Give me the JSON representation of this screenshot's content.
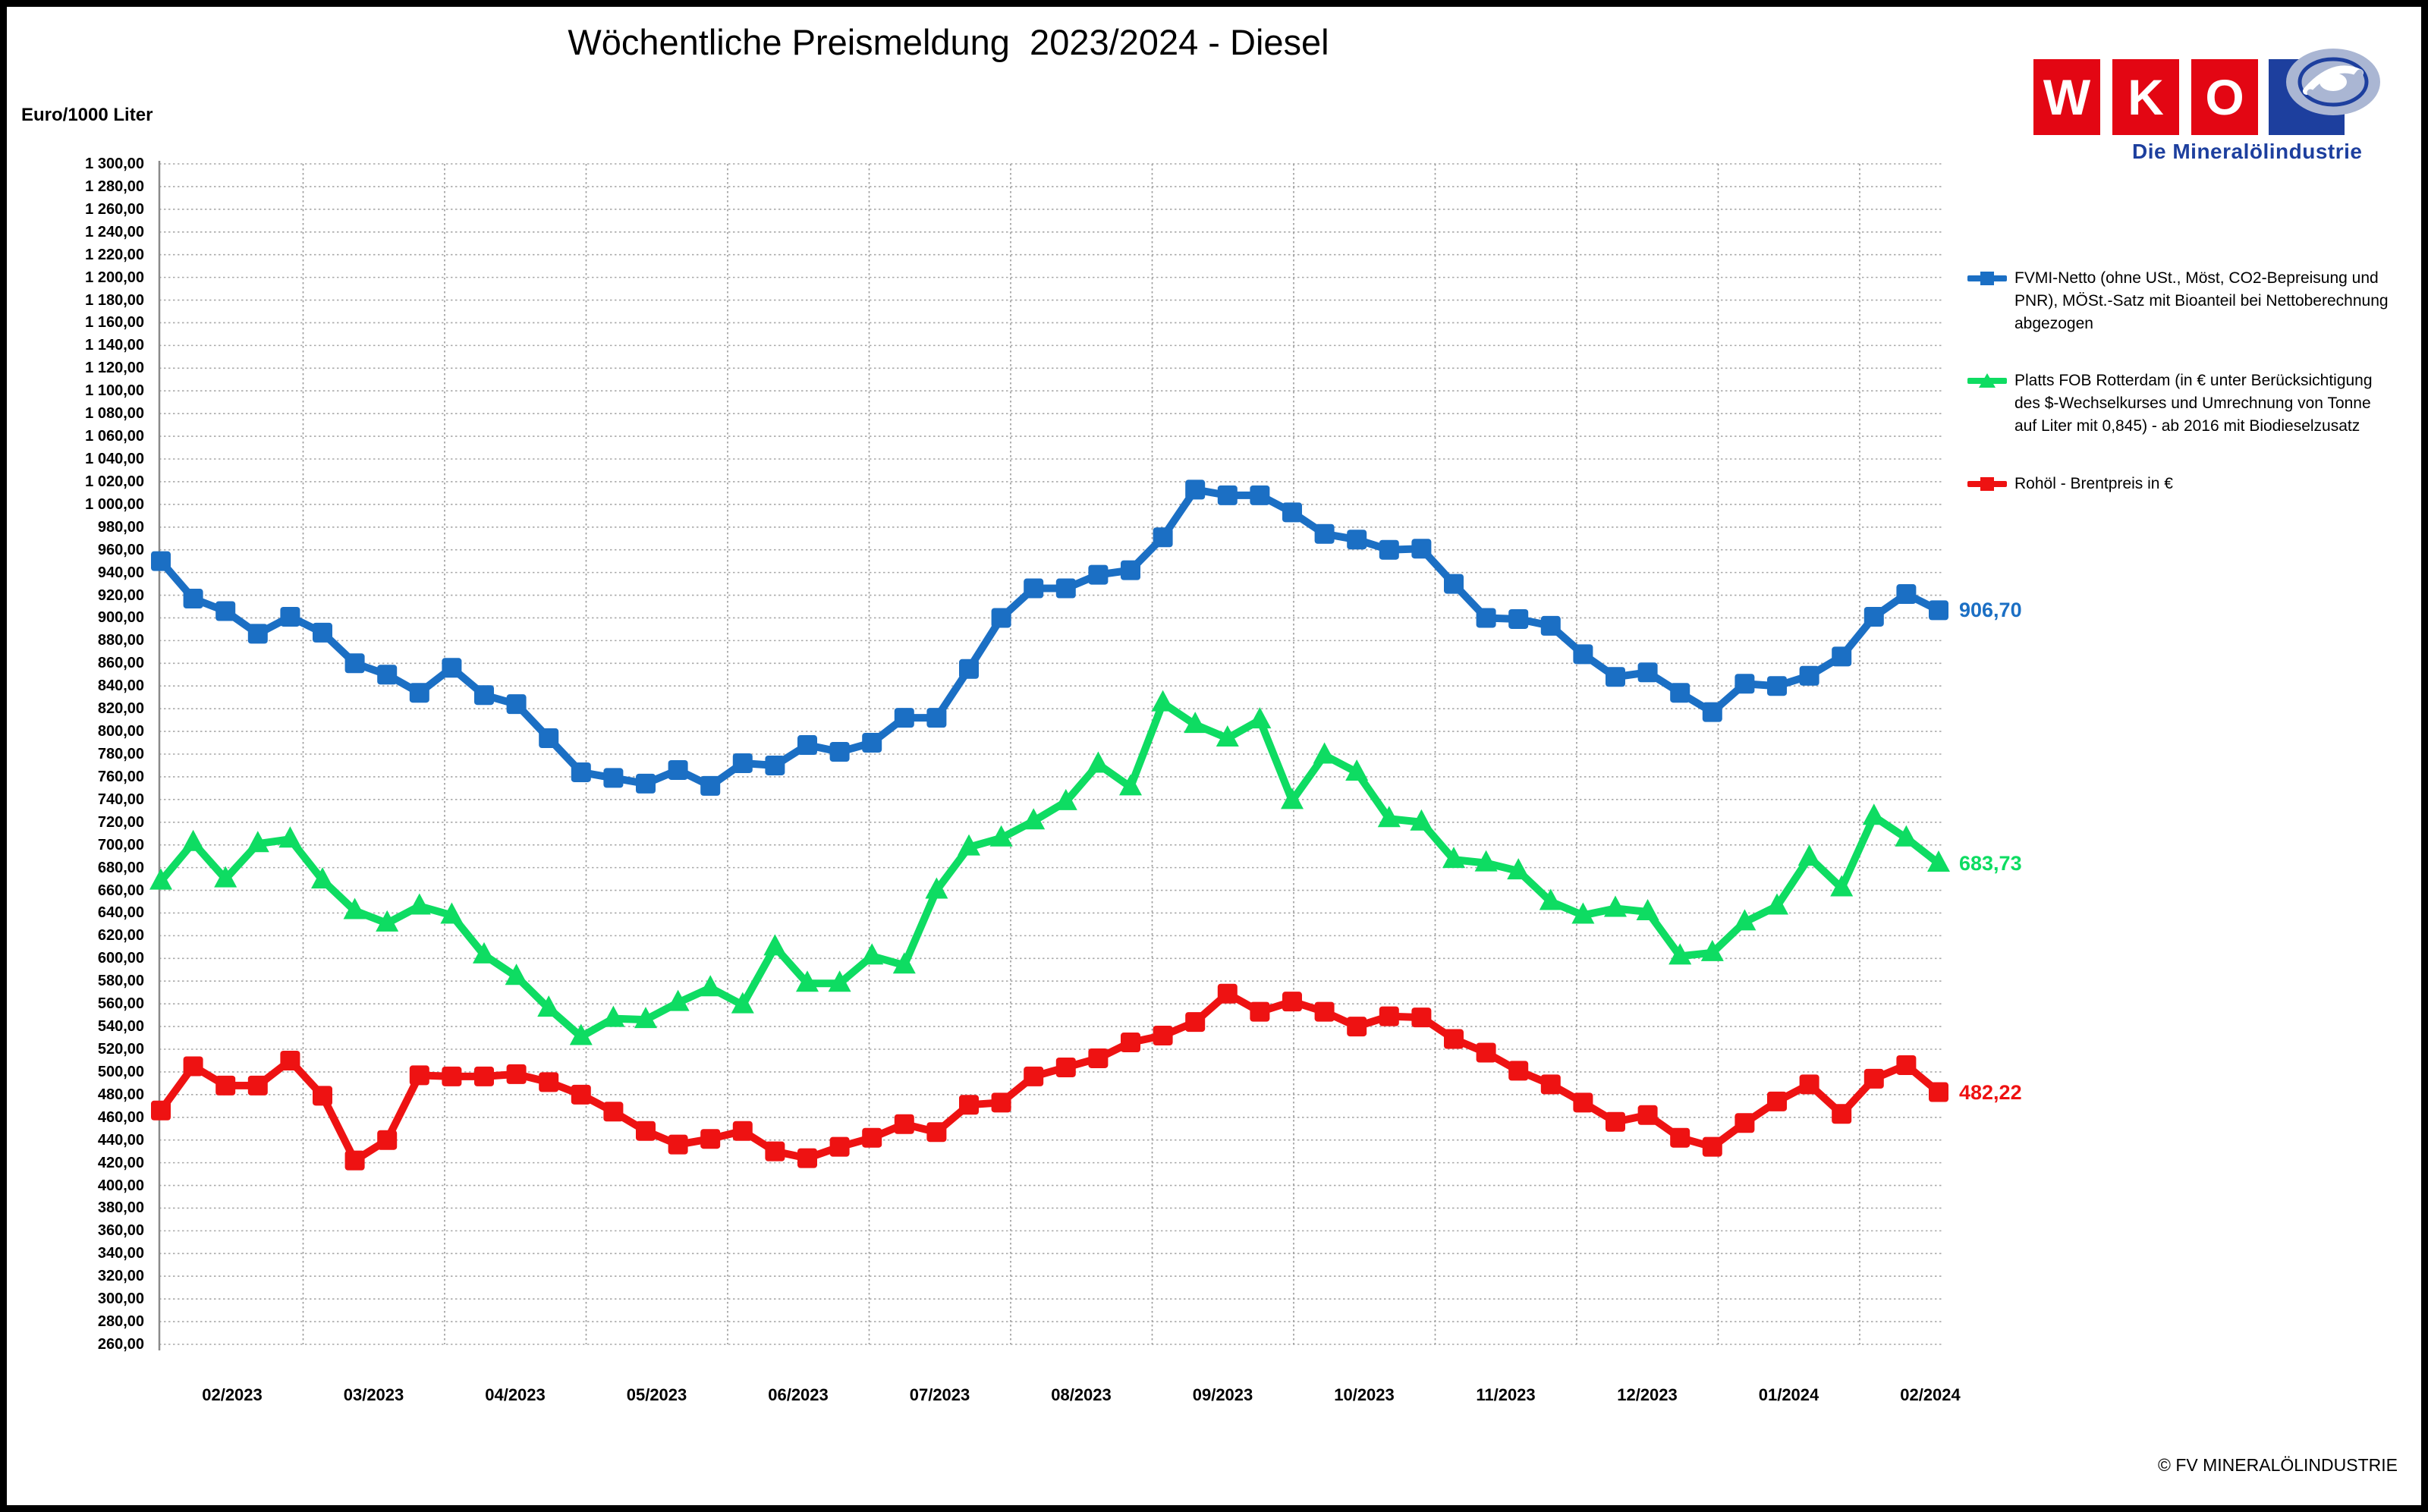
{
  "title": "Wöchentliche Preismeldung  2023/2024 - Diesel",
  "axis_unit": "Euro/1000 Liter",
  "footer": "© FV MINERALÖLINDUSTRIE",
  "logo": {
    "letters": [
      "W",
      "K",
      "O"
    ],
    "subtitle": "Die Mineralölindustrie",
    "brand_red": "#e30613",
    "brand_blue": "#1d3f9e"
  },
  "legend": {
    "items": [
      {
        "label": "FVMI-Netto (ohne USt., Möst, CO2-Bepreisung und PNR), MÖSt.-Satz mit Bioanteil bei Nettoberechnung abgezogen",
        "color": "#1b6fc4",
        "marker": "square"
      },
      {
        "label": "Platts FOB Rotterdam (in € unter Berücksichtigung des $-Wechselkurses und Umrechnung von Tonne auf Liter mit 0,845) - ab 2016 mit Biodieselzusatz",
        "color": "#0edc62",
        "marker": "triangle"
      },
      {
        "label": "Rohöl - Brentpreis in €",
        "color": "#ee1212",
        "marker": "square"
      }
    ]
  },
  "end_labels": [
    {
      "text": "906,70",
      "value": 906.7,
      "color": "#1b6fc4"
    },
    {
      "text": "683,73",
      "value": 683.73,
      "color": "#0edc62"
    },
    {
      "text": "482,22",
      "value": 482.22,
      "color": "#ee1212"
    }
  ],
  "chart_data": {
    "type": "line",
    "title": "Wöchentliche Preismeldung 2023/2024 - Diesel",
    "ylabel": "Euro/1000 Liter",
    "ylim": [
      260,
      1300
    ],
    "ytick_step": 20,
    "grid": true,
    "legend_position": "right",
    "x_labels": [
      "02/2023",
      "03/2023",
      "04/2023",
      "05/2023",
      "06/2023",
      "07/2023",
      "08/2023",
      "09/2023",
      "10/2023",
      "11/2023",
      "12/2023",
      "01/2024",
      "02/2024"
    ],
    "x_unit": "weeks",
    "series": [
      {
        "name": "FVMI-Netto (ohne USt., Möst, CO2-Bepreisung und PNR), MÖSt.-Satz mit Bioanteil bei Nettoberechnung abgezogen",
        "color": "#1b6fc4",
        "marker": "square",
        "values": [
          950,
          917,
          906,
          886,
          901,
          887,
          860,
          850,
          834,
          856,
          832,
          824,
          794,
          764,
          759,
          754,
          766,
          752,
          772,
          770,
          788,
          782,
          790,
          812,
          812,
          855,
          900,
          926,
          926,
          938,
          942,
          971,
          1013,
          1008,
          1008,
          993,
          974,
          969,
          960,
          961,
          930,
          900,
          899,
          893,
          868,
          848,
          852,
          834,
          817,
          842,
          840,
          849,
          866,
          901,
          921,
          906.7
        ]
      },
      {
        "name": "Platts FOB Rotterdam (in € unter Berücksichtigung des $-Wechselkurses und Umrechnung von Tonne auf Liter mit 0,845) - ab 2016 mit Biodieselzusatz",
        "color": "#0edc62",
        "marker": "triangle",
        "values": [
          668,
          702,
          670,
          701,
          705,
          669,
          642,
          631,
          646,
          638,
          603,
          584,
          556,
          531,
          547,
          546,
          561,
          574,
          559,
          610,
          578,
          578,
          602,
          594,
          660,
          698,
          706,
          721,
          738,
          771,
          751,
          825,
          806,
          794,
          810,
          739,
          779,
          764,
          723,
          720,
          687,
          684,
          677,
          650,
          638,
          644,
          641,
          602,
          605,
          632,
          646,
          689,
          662,
          725,
          706,
          683.73
        ]
      },
      {
        "name": "Rohöl - Brentpreis in €",
        "color": "#ee1212",
        "marker": "square",
        "values": [
          466,
          505,
          488,
          488,
          510,
          479,
          422,
          440,
          497,
          496,
          496,
          498,
          491,
          480,
          465,
          448,
          436,
          441,
          448,
          430,
          424,
          434,
          442,
          454,
          447,
          471,
          473,
          496,
          504,
          512,
          526,
          532,
          544,
          569,
          553,
          562,
          553,
          540,
          549,
          548,
          529,
          517,
          501,
          489,
          473,
          456,
          462,
          442,
          434,
          455,
          474,
          489,
          463,
          494,
          506,
          482.22
        ]
      }
    ]
  }
}
